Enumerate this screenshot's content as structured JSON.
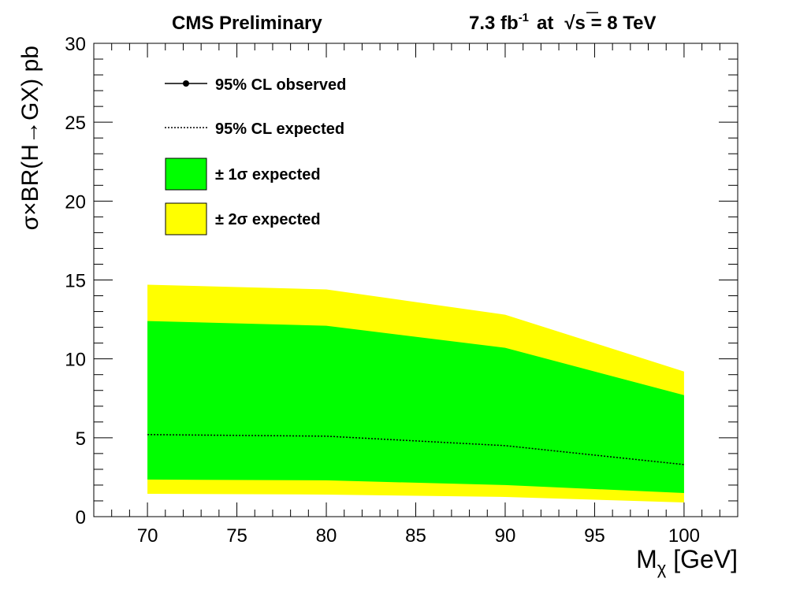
{
  "chart_data": {
    "type": "area",
    "header_left": "CMS Preliminary",
    "header_right": {
      "lumi": "7.3 fb",
      "lumi_exp": "-1",
      "at": "at",
      "sqrt": "√",
      "energy": "s = 8 TeV"
    },
    "ylabel": "σ×BR(H→GX) pb",
    "xlabel": {
      "main": "M",
      "sub": "χ",
      "unit": " [GeV]"
    },
    "xlim": [
      67,
      103
    ],
    "ylim": [
      0,
      30
    ],
    "x_ticks": [
      "70",
      "75",
      "80",
      "85",
      "90",
      "95",
      "100"
    ],
    "y_ticks": [
      "0",
      "5",
      "10",
      "15",
      "20",
      "25",
      "30"
    ],
    "legend": {
      "placement": "top-left",
      "entries": [
        {
          "label": "95% CL observed",
          "style": "line-marker"
        },
        {
          "label": "95% CL expected",
          "style": "dotted"
        },
        {
          "label": "± 1σ expected",
          "style": "box",
          "color": "#00ff00"
        },
        {
          "label": "± 2σ expected",
          "style": "box",
          "color": "#ffff00"
        }
      ]
    },
    "x": [
      70,
      80,
      90,
      100
    ],
    "series": [
      {
        "name": "95% CL expected",
        "values": [
          5.2,
          5.1,
          4.5,
          3.3
        ],
        "color": "#000000"
      },
      {
        "name": "+2σ",
        "values": [
          14.7,
          14.4,
          12.8,
          9.2
        ],
        "color": "#ffff00"
      },
      {
        "name": "+1σ",
        "values": [
          12.4,
          12.1,
          10.7,
          7.7
        ],
        "color": "#00ff00"
      },
      {
        "name": "-1σ",
        "values": [
          2.35,
          2.3,
          2.0,
          1.5
        ],
        "color": "#00ff00"
      },
      {
        "name": "-2σ",
        "values": [
          1.45,
          1.4,
          1.25,
          0.9
        ],
        "color": "#ffff00"
      }
    ]
  }
}
